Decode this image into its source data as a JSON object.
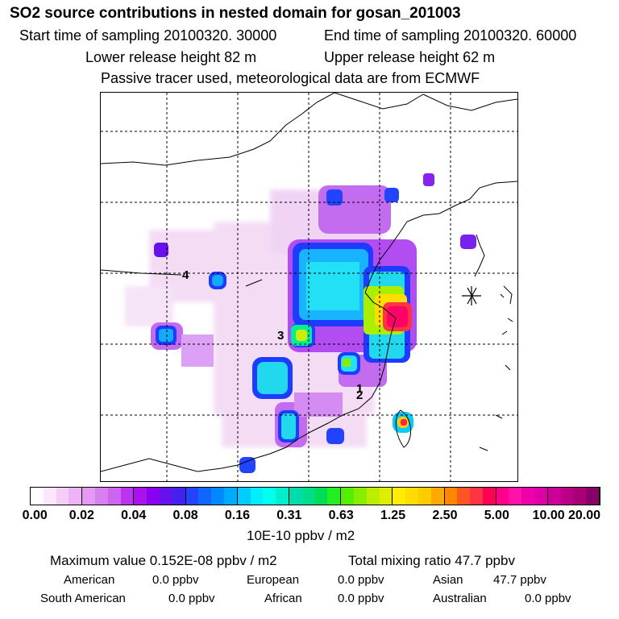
{
  "header": {
    "title": "SO2 source contributions in nested domain for gosan_201003",
    "start_time": "Start time of sampling 20100320. 30000",
    "end_time": "End time of sampling 20100320. 60000",
    "lower_height": "Lower release height   82 m",
    "upper_height": "Upper release height   62 m",
    "note": "Passive tracer used, meteorological data are from ECMWF"
  },
  "map": {
    "labels": [
      {
        "id": "1",
        "text": "1"
      },
      {
        "id": "2",
        "text": "2"
      },
      {
        "id": "3",
        "text": "3"
      },
      {
        "id": "4",
        "text": "4"
      }
    ]
  },
  "colorbar": {
    "ticks": [
      "0.00",
      "0.02",
      "0.04",
      "0.08",
      "0.16",
      "0.31",
      "0.63",
      "1.25",
      "2.50",
      "5.00",
      "10.00",
      "20.00"
    ],
    "unit": "10E-10 ppbv / m2",
    "colors": [
      "#ffffff",
      "#fbe6fb",
      "#f5cdf5",
      "#efb3f5",
      "#e599f3",
      "#d980f0",
      "#cc66ee",
      "#bb33ee",
      "#aa11ee",
      "#8800ee",
      "#6611ee",
      "#4422ee",
      "#2244ff",
      "#1166ff",
      "#0088ff",
      "#00aaff",
      "#00ccff",
      "#00eeff",
      "#00ffee",
      "#00eecc",
      "#00ddaa",
      "#00dd88",
      "#00dd55",
      "#22ee22",
      "#55ee00",
      "#88ee00",
      "#bbee00",
      "#ddee00",
      "#ffee00",
      "#ffdd00",
      "#ffcc00",
      "#ffaa00",
      "#ff8800",
      "#ff5522",
      "#ff3344",
      "#ff0055",
      "#ff0088",
      "#ff11aa",
      "#ee00aa",
      "#dd00aa",
      "#cc0099",
      "#bb0088",
      "#aa0077",
      "#880066"
    ]
  },
  "summary": {
    "max_value": "Maximum value  0.152E-08 ppbv / m2",
    "total": "Total mixing ratio       47.7 ppbv",
    "rows": [
      [
        {
          "k": "American",
          "v": "0.0 ppbv"
        },
        {
          "k": "European",
          "v": "0.0 ppbv"
        },
        {
          "k": "Asian",
          "v": "47.7 ppbv"
        }
      ],
      [
        {
          "k": "South American",
          "v": "0.0 ppbv"
        },
        {
          "k": "African",
          "v": "0.0 ppbv"
        },
        {
          "k": "Australian",
          "v": "0.0 ppbv"
        }
      ]
    ]
  }
}
